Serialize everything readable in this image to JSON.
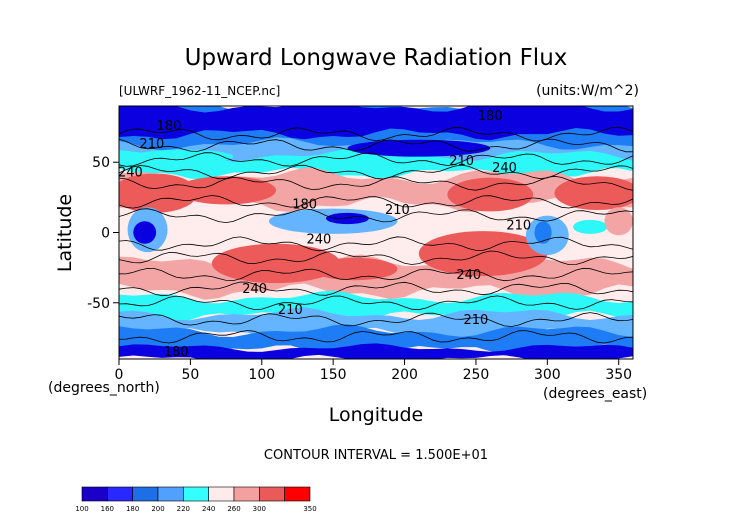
{
  "chart_data": {
    "type": "heatmap",
    "title": "Upward Longwave Radiation Flux",
    "file_label": "[ULWRF_1962-11_NCEP.nc]",
    "units_label": "(units:W/m^2)",
    "xlabel": "Longitude",
    "ylabel": "Latitude",
    "x_unit_label": "(degrees_east)",
    "y_unit_label": "(degrees_north)",
    "xlim": [
      0,
      360
    ],
    "ylim": [
      -90,
      90
    ],
    "x_ticks": [
      0,
      50,
      100,
      150,
      200,
      250,
      300,
      350
    ],
    "y_ticks": [
      50,
      0,
      -50
    ],
    "contour_interval_text": "CONTOUR INTERVAL = 1.500E+01",
    "contour_labels": [
      {
        "text": "180",
        "lon": 35,
        "lat": 73
      },
      {
        "text": "210",
        "lon": 23,
        "lat": 60
      },
      {
        "text": "240",
        "lon": 8,
        "lat": 40
      },
      {
        "text": "210",
        "lon": 240,
        "lat": 48
      },
      {
        "text": "240",
        "lon": 270,
        "lat": 43
      },
      {
        "text": "210",
        "lon": 195,
        "lat": 13
      },
      {
        "text": "180",
        "lon": 130,
        "lat": 17
      },
      {
        "text": "240",
        "lon": 140,
        "lat": -8
      },
      {
        "text": "210",
        "lon": 280,
        "lat": 2
      },
      {
        "text": "240",
        "lon": 245,
        "lat": -33
      },
      {
        "text": "240",
        "lon": 95,
        "lat": -43
      },
      {
        "text": "210",
        "lon": 120,
        "lat": -58
      },
      {
        "text": "210",
        "lon": 250,
        "lat": -65
      },
      {
        "text": "180",
        "lon": 40,
        "lat": -88
      },
      {
        "text": "180",
        "lon": 260,
        "lat": 80
      }
    ],
    "colorbar": {
      "levels": [
        100,
        160,
        180,
        200,
        220,
        240,
        260,
        300,
        350
      ],
      "colors": [
        "#1a00c8",
        "#2828ff",
        "#1e6ee6",
        "#50a0ff",
        "#33ffff",
        "#ffebeb",
        "#f5a0a0",
        "#eb5a5a",
        "#ff0000"
      ]
    },
    "field_colors": {
      "deep_blue": "#0a00e0",
      "mid_blue": "#1e7cf5",
      "light_blue": "#64b4ff",
      "cyan": "#2ef7f7",
      "pale": "#ffecec",
      "pink": "#f3a5a5",
      "red": "#ec5a5a",
      "bright_red": "#ff1a1a"
    }
  }
}
